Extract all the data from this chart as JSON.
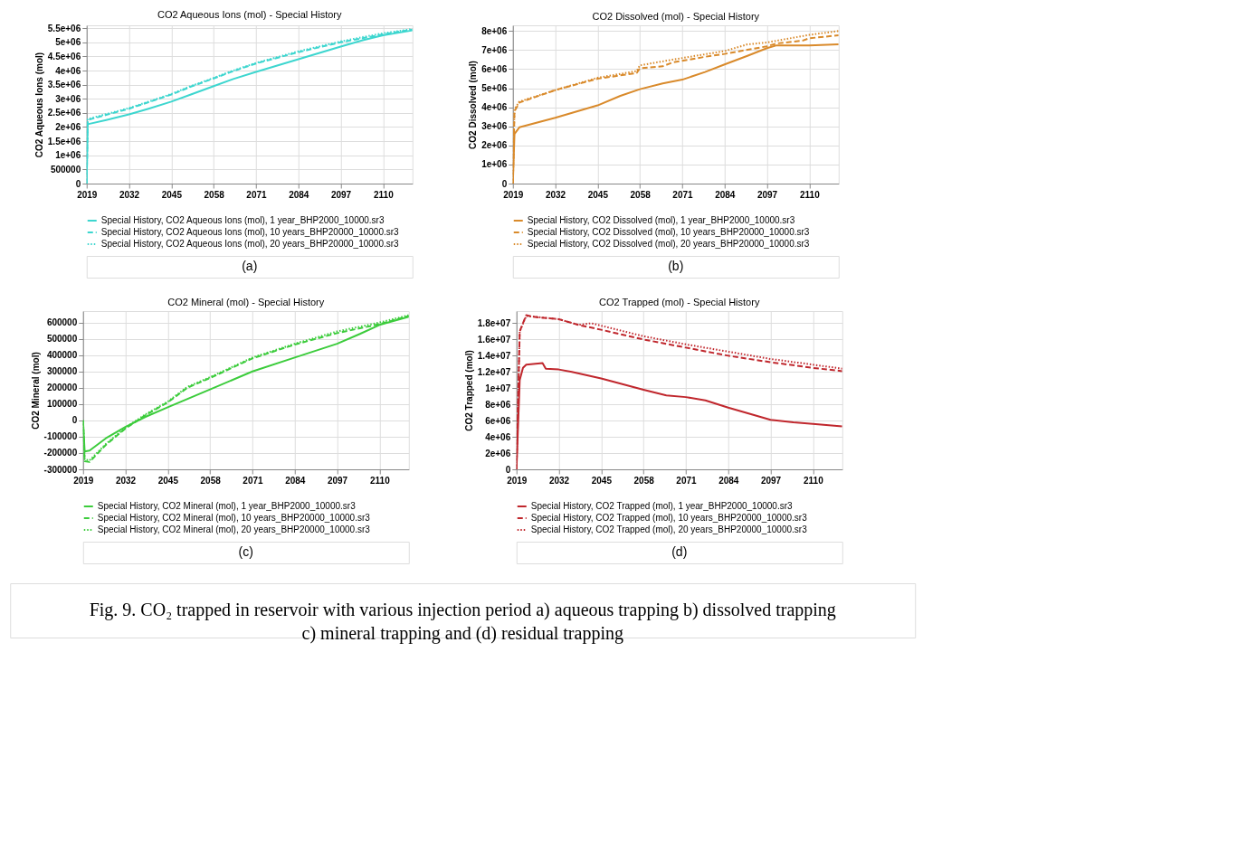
{
  "chart_data": [
    {
      "type": "line",
      "title": "CO2 Aqueous Ions (mol) - Special History",
      "ylabel": "CO2 Aqueous Ions (mol)",
      "annotations": [
        "(a)"
      ],
      "xlim": [
        2019,
        2119
      ],
      "xticks": [
        2019,
        2032,
        2045,
        2058,
        2071,
        2084,
        2097,
        2110
      ],
      "ylim": [
        0,
        5600000
      ],
      "yticks": [
        0,
        500000,
        {
          "value": 1000000,
          "label": "1e+06"
        },
        {
          "value": 1500000,
          "label": "1.5e+06"
        },
        {
          "value": 2000000,
          "label": "2e+06"
        },
        {
          "value": 2500000,
          "label": "2.5e+06"
        },
        {
          "value": 3000000,
          "label": "3e+06"
        },
        {
          "value": 3500000,
          "label": "3.5e+06"
        },
        {
          "value": 4000000,
          "label": "4e+06"
        },
        {
          "value": 4500000,
          "label": "4.5e+06"
        },
        {
          "value": 5000000,
          "label": "5e+06"
        },
        {
          "value": 5500000,
          "label": "5.5e+06"
        }
      ],
      "grid": true,
      "legend": "bottom",
      "series": [
        {
          "name": "Special History, CO2 Aqueous Ions (mol), 1 year_BHP2000_10000.sr3",
          "color": "#3dd6cf",
          "line_style": "solid",
          "x": [
            2019,
            2019.3,
            2025,
            2032,
            2038,
            2045,
            2051,
            2058,
            2064,
            2071,
            2084,
            2097,
            2104,
            2110,
            2119
          ],
          "values": [
            0,
            2100000,
            2250000,
            2450000,
            2650000,
            2900000,
            3150000,
            3450000,
            3700000,
            3950000,
            4400000,
            4850000,
            5080000,
            5250000,
            5420000
          ]
        },
        {
          "name": "Special History, CO2 Aqueous Ions (mol), 10 years_BHP20000_10000.sr3",
          "color": "#3dd6cf",
          "line_style": "dashed",
          "x": [
            2019,
            2019.3,
            2025,
            2032,
            2038,
            2045,
            2051,
            2058,
            2064,
            2071,
            2084,
            2097,
            2104,
            2110,
            2119
          ],
          "values": [
            0,
            2250000,
            2430000,
            2650000,
            2880000,
            3150000,
            3430000,
            3720000,
            3980000,
            4250000,
            4650000,
            5000000,
            5150000,
            5280000,
            5450000
          ]
        },
        {
          "name": "Special History, CO2 Aqueous Ions (mol), 20 years_BHP20000_10000.sr3",
          "color": "#3dd6cf",
          "line_style": "dotted",
          "x": [
            2019,
            2019.3,
            2025,
            2032,
            2038,
            2045,
            2051,
            2058,
            2064,
            2071,
            2084,
            2097,
            2104,
            2110,
            2119
          ],
          "values": [
            0,
            2280000,
            2460000,
            2670000,
            2900000,
            3170000,
            3450000,
            3740000,
            4000000,
            4270000,
            4680000,
            5030000,
            5190000,
            5320000,
            5470000
          ]
        }
      ]
    },
    {
      "type": "line",
      "title": "CO2 Dissolved (mol) - Special History",
      "ylabel": "CO2 Dissolved (mol)",
      "annotations": [
        "(b)"
      ],
      "xlim": [
        2019,
        2119
      ],
      "xticks": [
        2019,
        2032,
        2045,
        2058,
        2071,
        2084,
        2097,
        2110
      ],
      "ylim": [
        0,
        8300000
      ],
      "yticks": [
        0,
        {
          "value": 1000000,
          "label": "1e+06"
        },
        {
          "value": 2000000,
          "label": "2e+06"
        },
        {
          "value": 3000000,
          "label": "3e+06"
        },
        {
          "value": 4000000,
          "label": "4e+06"
        },
        {
          "value": 5000000,
          "label": "5e+06"
        },
        {
          "value": 6000000,
          "label": "6e+06"
        },
        {
          "value": 7000000,
          "label": "7e+06"
        },
        {
          "value": 8000000,
          "label": "8e+06"
        }
      ],
      "grid": true,
      "legend": "bottom",
      "series": [
        {
          "name": "Special History, CO2 Dissolved (mol), 1 year_BHP2000_10000.sr3",
          "color": "#d98a2b",
          "line_style": "solid",
          "x": [
            2019,
            2019.5,
            2021,
            2032,
            2045,
            2052,
            2058,
            2065,
            2071,
            2078,
            2084,
            2091,
            2097,
            2100,
            2110,
            2119
          ],
          "values": [
            0,
            2600000,
            2950000,
            3450000,
            4100000,
            4600000,
            4950000,
            5250000,
            5450000,
            5850000,
            6250000,
            6700000,
            7100000,
            7250000,
            7250000,
            7300000
          ]
        },
        {
          "name": "Special History, CO2 Dissolved (mol), 10 years_BHP20000_10000.sr3",
          "color": "#d98a2b",
          "line_style": "dashed",
          "x": [
            2019,
            2019.5,
            2021,
            2032,
            2045,
            2057,
            2058,
            2065,
            2068,
            2078,
            2084,
            2097,
            2100,
            2108,
            2110,
            2119
          ],
          "values": [
            0,
            3800000,
            4250000,
            4900000,
            5500000,
            5800000,
            6050000,
            6150000,
            6350000,
            6650000,
            6800000,
            7200000,
            7350000,
            7500000,
            7620000,
            7780000
          ]
        },
        {
          "name": "Special History, CO2 Dissolved (mol), 20 years_BHP20000_10000.sr3",
          "color": "#d98a2b",
          "line_style": "dotted",
          "x": [
            2019,
            2019.5,
            2021,
            2032,
            2045,
            2057,
            2058,
            2068,
            2084,
            2091,
            2097,
            2110,
            2119
          ],
          "values": [
            0,
            3900000,
            4300000,
            4900000,
            5550000,
            5900000,
            6200000,
            6500000,
            6950000,
            7300000,
            7400000,
            7800000,
            8000000
          ]
        }
      ]
    },
    {
      "type": "line",
      "title": "CO2 Mineral (mol) - Special History",
      "ylabel": "CO2 Mineral (mol)",
      "annotations": [
        "(c)"
      ],
      "xlim": [
        2019,
        2119
      ],
      "xticks": [
        2019,
        2032,
        2045,
        2058,
        2071,
        2084,
        2097,
        2110
      ],
      "ylim": [
        -300000,
        670000
      ],
      "yticks": [
        -300000,
        -200000,
        -100000,
        0,
        100000,
        200000,
        300000,
        400000,
        500000,
        600000
      ],
      "grid": true,
      "legend": "bottom",
      "series": [
        {
          "name": "Special History, CO2 Mineral (mol), 1 year_BHP2000_10000.sr3",
          "color": "#3ccc3c",
          "line_style": "solid",
          "x": [
            2019,
            2019.5,
            2021,
            2026,
            2032,
            2038,
            2045,
            2058,
            2071,
            2084,
            2097,
            2104,
            2110,
            2119
          ],
          "values": [
            0,
            -190000,
            -185000,
            -110000,
            -40000,
            20000,
            80000,
            190000,
            300000,
            385000,
            470000,
            530000,
            585000,
            635000
          ]
        },
        {
          "name": "Special History, CO2 Mineral (mol), 10 years_BHP20000_10000.sr3",
          "color": "#3ccc3c",
          "line_style": "dashed",
          "x": [
            2019,
            2019.5,
            2021,
            2026,
            2032,
            2038,
            2045,
            2051,
            2058,
            2071,
            2084,
            2097,
            2110,
            2119
          ],
          "values": [
            0,
            -250000,
            -255000,
            -150000,
            -50000,
            30000,
            110000,
            200000,
            260000,
            380000,
            465000,
            535000,
            590000,
            640000
          ]
        },
        {
          "name": "Special History, CO2 Mineral (mol), 20 years_BHP20000_10000.sr3",
          "color": "#3ccc3c",
          "line_style": "dotted",
          "x": [
            2019,
            2019.5,
            2021,
            2026,
            2032,
            2038,
            2045,
            2051,
            2058,
            2071,
            2084,
            2097,
            2110,
            2119
          ],
          "values": [
            0,
            -240000,
            -245000,
            -145000,
            -45000,
            35000,
            115000,
            205000,
            265000,
            385000,
            470000,
            545000,
            600000,
            645000
          ]
        }
      ]
    },
    {
      "type": "line",
      "title": "CO2 Trapped (mol) - Special History",
      "ylabel": "CO2 Trapped (mol)",
      "annotations": [
        "(d)",
        "Fig. 9. CO₂ trapped in reservoir with various injection period  a) aqueous trapping  b) dissolved trapping c) mineral trapping and (d) residual trapping"
      ],
      "xlim": [
        2019,
        2119
      ],
      "xticks": [
        2019,
        2032,
        2045,
        2058,
        2071,
        2084,
        2097,
        2110
      ],
      "ylim": [
        0,
        19500000
      ],
      "yticks": [
        0,
        {
          "value": 2000000,
          "label": "2e+06"
        },
        {
          "value": 4000000,
          "label": "4e+06"
        },
        {
          "value": 6000000,
          "label": "6e+06"
        },
        {
          "value": 8000000,
          "label": "8e+06"
        },
        {
          "value": 10000000,
          "label": "1e+07"
        },
        {
          "value": 12000000,
          "label": "1.2e+07"
        },
        {
          "value": 14000000,
          "label": "1.4e+07"
        },
        {
          "value": 16000000,
          "label": "1.6e+07"
        },
        {
          "value": 18000000,
          "label": "1.8e+07"
        }
      ],
      "grid": true,
      "legend": "bottom",
      "series": [
        {
          "name": "Special History, CO2 Trapped (mol), 1 year_BHP2000_10000.sr3",
          "color": "#c0272d",
          "line_style": "solid",
          "x": [
            2019,
            2020,
            2021,
            2022,
            2027,
            2028,
            2032,
            2036,
            2045,
            2058,
            2065,
            2071,
            2077,
            2084,
            2097,
            2104,
            2110,
            2119
          ],
          "values": [
            0,
            11000000,
            12500000,
            12900000,
            13100000,
            12400000,
            12300000,
            12000000,
            11200000,
            9800000,
            9100000,
            8900000,
            8500000,
            7600000,
            6100000,
            5800000,
            5600000,
            5300000
          ]
        },
        {
          "name": "Special History, CO2 Trapped (mol), 10 years_BHP20000_10000.sr3",
          "color": "#c0272d",
          "line_style": "dashed",
          "x": [
            2019,
            2020,
            2021,
            2022,
            2024,
            2032,
            2038,
            2045,
            2058,
            2071,
            2084,
            2097,
            2110,
            2119
          ],
          "values": [
            0,
            17000000,
            18000000,
            19000000,
            18800000,
            18500000,
            17800000,
            17200000,
            16000000,
            15000000,
            14000000,
            13200000,
            12500000,
            12100000
          ]
        },
        {
          "name": "Special History, CO2 Trapped (mol), 20 years_BHP20000_10000.sr3",
          "color": "#c0272d",
          "line_style": "dotted",
          "x": [
            2019,
            2020,
            2022,
            2032,
            2038,
            2042,
            2058,
            2071,
            2084,
            2097,
            2110,
            2119
          ],
          "values": [
            0,
            17000000,
            18900000,
            18500000,
            17800000,
            18000000,
            16400000,
            15400000,
            14500000,
            13600000,
            12900000,
            12400000
          ]
        }
      ]
    }
  ]
}
